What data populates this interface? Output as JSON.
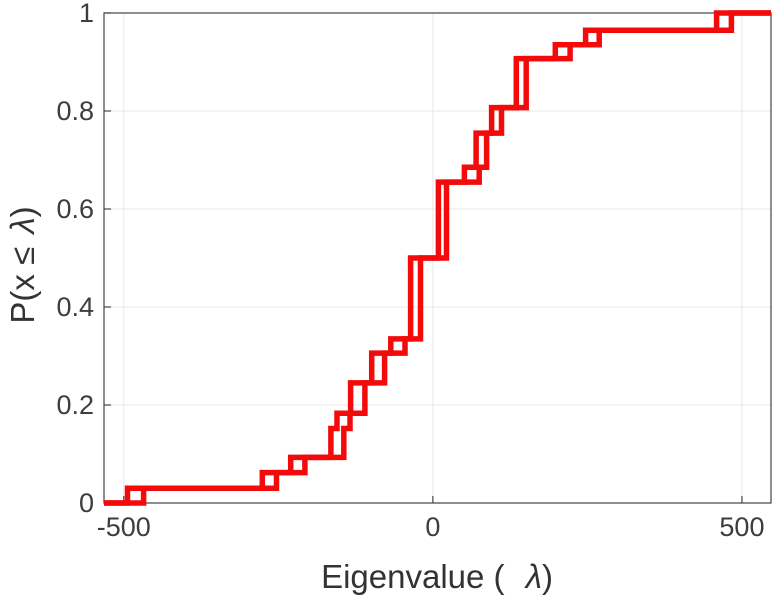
{
  "chart_data": {
    "type": "line",
    "subtype": "empirical-cdf-staircase",
    "title": "",
    "xlabel": "Eigenvalue ( λ)",
    "xlabel_prefix": "Eigenvalue ( ",
    "xlabel_symbol": "λ",
    "xlabel_suffix": ")",
    "ylabel": "P(x ≤ λ)",
    "ylabel_prefix": "P(x ≤ ",
    "ylabel_symbol": "λ",
    "ylabel_suffix": ")",
    "xlim": [
      -532,
      547
    ],
    "ylim": [
      0,
      1
    ],
    "xticks": {
      "values": [
        -500,
        0,
        500
      ],
      "labels": [
        "-500",
        "0",
        "500"
      ]
    },
    "yticks": {
      "values": [
        0,
        0.2,
        0.4,
        0.6,
        0.8,
        1
      ],
      "labels": [
        "0",
        "0.2",
        "0.4",
        "0.6",
        "0.8",
        "1"
      ]
    },
    "grid": true,
    "legend_position": "none",
    "line_color": "#f30b0b",
    "line_width": 5.5,
    "grid_color": "#e8e8e8",
    "axis_color": "#444444",
    "cumulative_levels": [
      0.03,
      0.062,
      0.093,
      0.152,
      0.183,
      0.245,
      0.306,
      0.335,
      0.5,
      0.655,
      0.685,
      0.755,
      0.807,
      0.907,
      0.935,
      0.965,
      1.0
    ],
    "series": [
      {
        "name": "ecdf-step-series-1",
        "jump_x": [
          -494,
          -276,
          -230,
          -165,
          -155,
          -133,
          -99,
          -68,
          -36,
          9,
          51,
          70,
          95,
          135,
          198,
          247,
          459
        ]
      },
      {
        "name": "ecdf-step-series-2",
        "jump_x": [
          -468,
          -253,
          -207,
          -144,
          -134,
          -110,
          -78,
          -45,
          -20,
          22,
          75,
          87,
          111,
          151,
          222,
          269,
          483
        ]
      }
    ]
  }
}
